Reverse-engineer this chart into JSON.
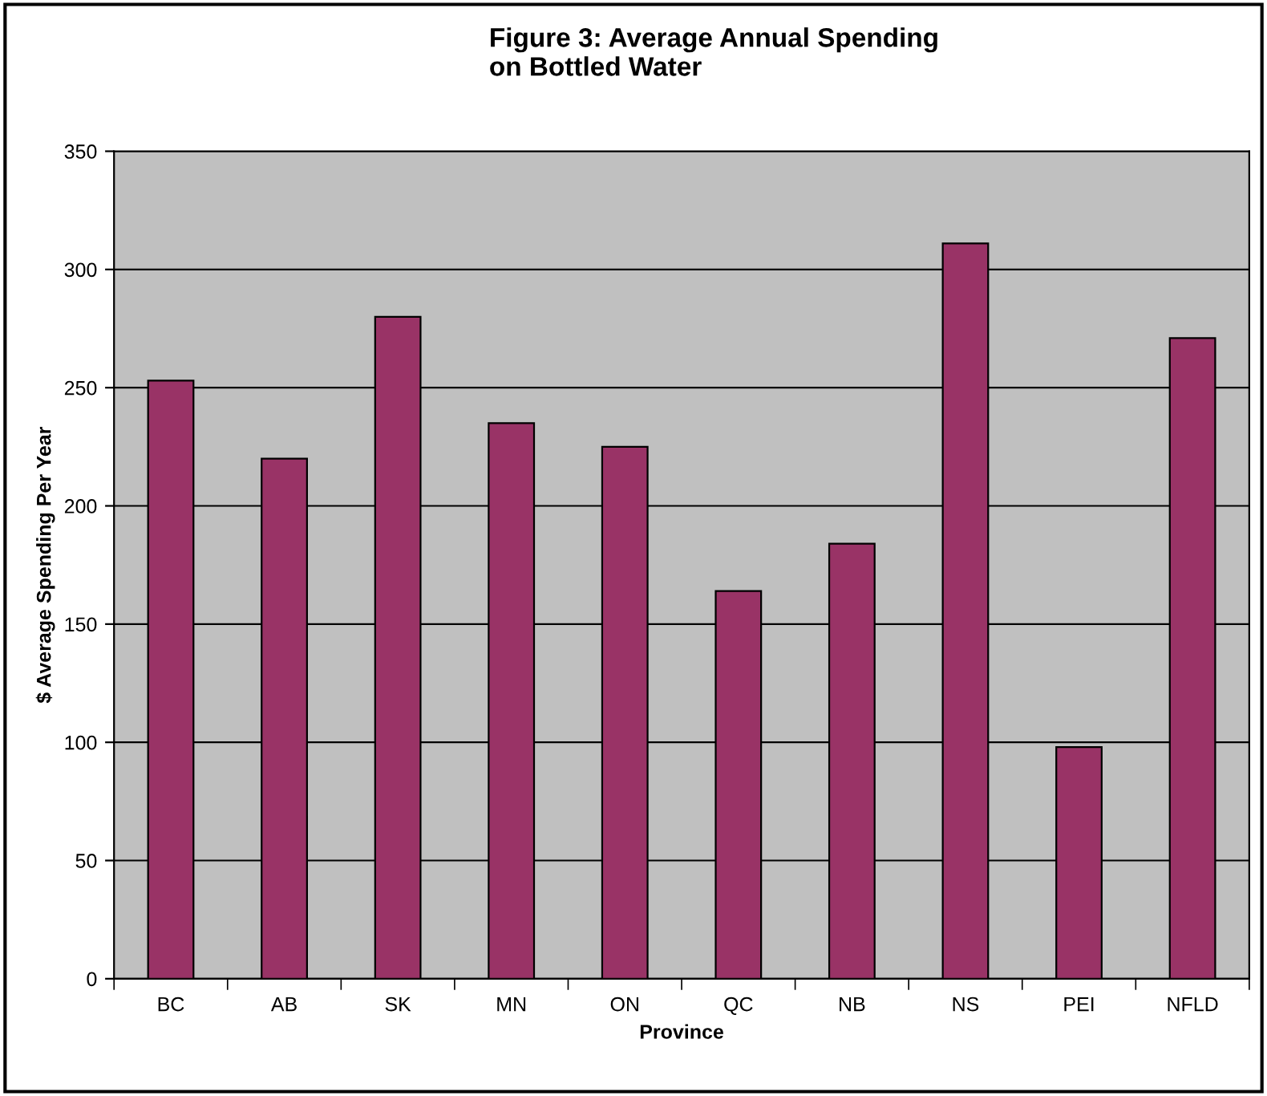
{
  "chart_data": {
    "type": "bar",
    "title": "Figure 3: Average Annual Spending\non Bottled Water",
    "xlabel": "Province",
    "ylabel": "$ Average Spending Per Year",
    "categories": [
      "BC",
      "AB",
      "SK",
      "MN",
      "ON",
      "QC",
      "NB",
      "NS",
      "PEI",
      "NFLD"
    ],
    "values": [
      253,
      220,
      280,
      235,
      225,
      164,
      184,
      311,
      98,
      271
    ],
    "color": "#993366",
    "ylim": [
      0,
      350
    ],
    "yticks": [
      0,
      50,
      100,
      150,
      200,
      250,
      300,
      350
    ],
    "grid": "y"
  }
}
